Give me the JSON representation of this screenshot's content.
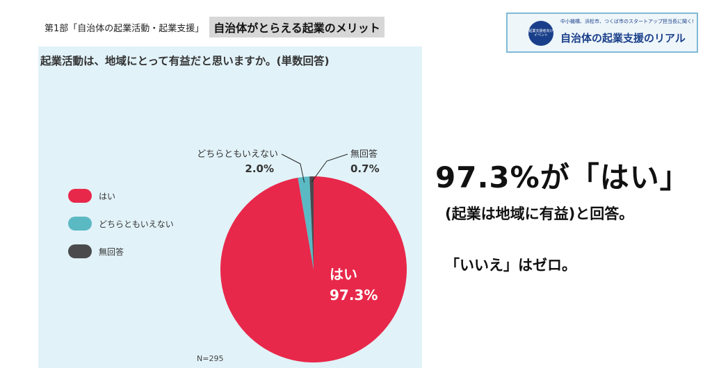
{
  "header": {
    "part_label": "第1部「自治体の起業活動・起業支援」",
    "title": "自治体がとらえる起業のメリット"
  },
  "banner": {
    "seal_text": "起業支援者向け イベント",
    "subtitle": "中小機構、浜松市、つくば市のスタートアップ担当長に聞く!",
    "main_title": "自治体の起業支援のリアル"
  },
  "chart_data": {
    "type": "pie",
    "title": "起業活動は、地域にとって有益だと思いますか。(単数回答)",
    "slices": [
      {
        "label": "はい",
        "value": 97.3,
        "value_text": "97.3%",
        "color": "#e8284a"
      },
      {
        "label": "どちらともいえない",
        "value": 2.0,
        "value_text": "2.0%",
        "color": "#5bb9c4"
      },
      {
        "label": "無回答",
        "value": 0.7,
        "value_text": "0.7%",
        "color": "#4a4a4d"
      }
    ],
    "legend": [
      "はい",
      "どちらともいえない",
      "無回答"
    ],
    "legend_position": "left",
    "note": "N=295"
  },
  "summary": {
    "headline": "97.3%が「はい」",
    "subline": "(起業は地域に有益)と回答。",
    "zero_line": "「いいえ」はゼロ。"
  }
}
